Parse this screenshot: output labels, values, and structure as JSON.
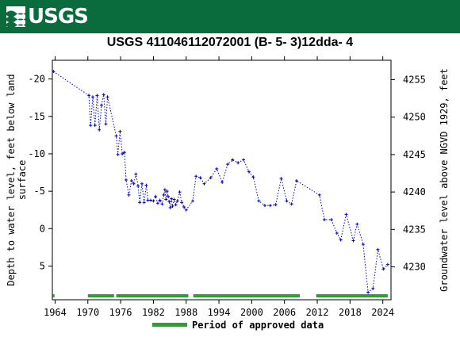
{
  "header": {
    "logo_text": "USGS",
    "background_color": "#0a6b3d",
    "logo_icon": "usgs-wave-icon"
  },
  "chart_data": {
    "type": "scatter",
    "title": "USGS 411046112072001  (B- 5- 3)12dda- 4",
    "ylabel_left": "Depth to water level, feet below land surface",
    "ylabel_left_lines": [
      "Depth to water level, feet below land",
      "surface"
    ],
    "ylabel_right": "Groundwater level above NGVD 1929, feet",
    "x_ticks": [
      "1964",
      "1970",
      "1976",
      "1982",
      "1988",
      "1994",
      "2000",
      "2006",
      "2012",
      "2018",
      "2024"
    ],
    "x_tick_values": [
      1964,
      1970,
      1976,
      1982,
      1988,
      1994,
      2000,
      2006,
      2012,
      2018,
      2024
    ],
    "xlim": [
      1963.5,
      2025.5
    ],
    "y_left_ticks": [
      "-20",
      "-15",
      "-10",
      "-5",
      "0",
      "5"
    ],
    "y_left_tick_values": [
      -20,
      -15,
      -10,
      -5,
      0,
      5
    ],
    "y_left_lim": [
      -22.5,
      9.5
    ],
    "y_left_inverted": true,
    "y_right_ticks": [
      "4255",
      "4250",
      "4245",
      "4240",
      "4235",
      "4230"
    ],
    "y_right_tick_values": [
      4255,
      4250,
      4245,
      4240,
      4235,
      4230
    ],
    "datum_offset": 4235.1,
    "series": [
      {
        "color": "#0000cc",
        "style": "dotted line with plus markers",
        "x": [
          1963.7,
          1970.2,
          1970.5,
          1970.9,
          1971.3,
          1971.7,
          1972.1,
          1972.5,
          1972.9,
          1973.3,
          1973.6,
          1975.2,
          1975.5,
          1975.9,
          1976.3,
          1976.7,
          1977.0,
          1977.5,
          1978.0,
          1978.4,
          1978.8,
          1979.2,
          1979.5,
          1979.9,
          1980.3,
          1980.7,
          1981.0,
          1981.5,
          1982.0,
          1982.4,
          1982.8,
          1983.2,
          1983.6,
          1983.9,
          1984.1,
          1984.3,
          1984.5,
          1984.7,
          1984.9,
          1985.1,
          1985.3,
          1985.5,
          1985.8,
          1986.1,
          1986.4,
          1986.8,
          1987.2,
          1987.6,
          1988.0,
          1989.2,
          1989.8,
          1990.6,
          1991.3,
          1992.5,
          1993.6,
          1994.6,
          1995.6,
          1996.5,
          1997.5,
          1998.5,
          1999.5,
          2000.3,
          2001.3,
          2002.4,
          2003.4,
          2004.4,
          2005.4,
          2006.4,
          2007.3,
          2008.2,
          2012.4,
          2013.3,
          2014.6,
          2015.6,
          2016.3,
          2017.3,
          2018.6,
          2019.3,
          2020.4,
          2021.3,
          2022.2,
          2023.1,
          2024.1,
          2024.9
        ],
        "y": [
          -21.0,
          -17.8,
          -13.8,
          -17.6,
          -13.8,
          -17.8,
          -13.2,
          -16.5,
          -17.9,
          -14.0,
          -17.6,
          -12.4,
          -9.9,
          -13.0,
          -10.0,
          -10.2,
          -6.5,
          -4.5,
          -6.4,
          -6.0,
          -7.3,
          -5.7,
          -3.5,
          -6.0,
          -3.5,
          -5.8,
          -3.8,
          -3.8,
          -3.7,
          -4.3,
          -3.4,
          -3.8,
          -3.3,
          -4.5,
          -5.2,
          -3.9,
          -5.0,
          -4.3,
          -3.6,
          -2.8,
          -4.0,
          -3.0,
          -3.9,
          -3.2,
          -3.7,
          -4.9,
          -3.5,
          -2.9,
          -2.5,
          -3.7,
          -7.0,
          -6.8,
          -6.0,
          -6.8,
          -8.0,
          -6.2,
          -8.6,
          -9.2,
          -8.8,
          -9.2,
          -7.6,
          -6.9,
          -3.7,
          -3.1,
          -3.1,
          -3.2,
          -6.7,
          -3.7,
          -3.3,
          -6.4,
          -4.5,
          -1.2,
          -1.2,
          0.6,
          1.5,
          -1.9,
          1.6,
          -0.6,
          2.1,
          8.5,
          8.0,
          2.8,
          5.4,
          4.8
        ]
      }
    ],
    "approved_periods": [
      [
        1963.6,
        1963.9
      ],
      [
        1970.0,
        1974.8
      ],
      [
        1975.2,
        1988.4
      ],
      [
        1989.3,
        2008.8
      ],
      [
        2011.8,
        2024.9
      ]
    ],
    "approved_color": "#2ca02c",
    "legend": {
      "label": "Period of approved data",
      "placement": "bottom-center"
    },
    "grid": false
  }
}
